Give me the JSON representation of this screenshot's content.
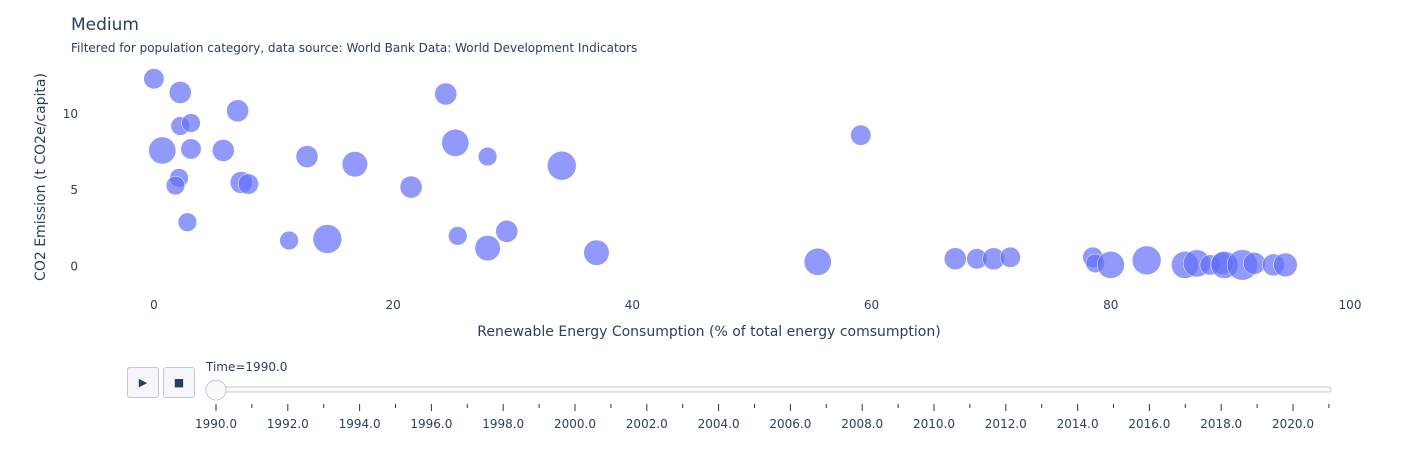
{
  "chart_data": {
    "type": "scatter",
    "title": "Medium",
    "subtitle": "Filtered for population category, data source: World Bank Data: World Development Indicators",
    "xlabel": "Renewable Energy Consumption (% of total energy comsumption)",
    "ylabel": "CO2 Emission (t CO2e/capita)",
    "xlim": [
      -2,
      100
    ],
    "ylim": [
      -2.2,
      13.2
    ],
    "xticks": [
      0,
      20,
      40,
      60,
      80,
      100
    ],
    "yticks": [
      0,
      5,
      10
    ],
    "marker_color": "#636efa",
    "points": [
      {
        "x": 0.0,
        "y": 12.3,
        "size": 1.2
      },
      {
        "x": 2.2,
        "y": 11.4,
        "size": 1.3
      },
      {
        "x": 0.7,
        "y": 7.6,
        "size": 1.6
      },
      {
        "x": 2.2,
        "y": 9.2,
        "size": 1.1
      },
      {
        "x": 3.1,
        "y": 9.4,
        "size": 1.1
      },
      {
        "x": 3.1,
        "y": 7.7,
        "size": 1.2
      },
      {
        "x": 2.1,
        "y": 5.8,
        "size": 1.1
      },
      {
        "x": 1.8,
        "y": 5.3,
        "size": 1.1
      },
      {
        "x": 2.8,
        "y": 2.9,
        "size": 1.1
      },
      {
        "x": 5.8,
        "y": 7.6,
        "size": 1.3
      },
      {
        "x": 7.0,
        "y": 10.2,
        "size": 1.3
      },
      {
        "x": 7.3,
        "y": 5.5,
        "size": 1.3
      },
      {
        "x": 7.9,
        "y": 5.4,
        "size": 1.2
      },
      {
        "x": 11.3,
        "y": 1.7,
        "size": 1.1
      },
      {
        "x": 12.8,
        "y": 7.2,
        "size": 1.3
      },
      {
        "x": 14.5,
        "y": 1.8,
        "size": 1.7
      },
      {
        "x": 16.8,
        "y": 6.7,
        "size": 1.5
      },
      {
        "x": 21.5,
        "y": 5.2,
        "size": 1.3
      },
      {
        "x": 24.4,
        "y": 11.3,
        "size": 1.3
      },
      {
        "x": 25.2,
        "y": 8.1,
        "size": 1.6
      },
      {
        "x": 25.4,
        "y": 2.0,
        "size": 1.1
      },
      {
        "x": 27.9,
        "y": 7.2,
        "size": 1.1
      },
      {
        "x": 27.9,
        "y": 1.2,
        "size": 1.5
      },
      {
        "x": 29.5,
        "y": 2.3,
        "size": 1.3
      },
      {
        "x": 34.1,
        "y": 6.6,
        "size": 1.7
      },
      {
        "x": 37.0,
        "y": 0.9,
        "size": 1.5
      },
      {
        "x": 55.5,
        "y": 0.3,
        "size": 1.6
      },
      {
        "x": 59.1,
        "y": 8.6,
        "size": 1.2
      },
      {
        "x": 67.0,
        "y": 0.5,
        "size": 1.3
      },
      {
        "x": 68.8,
        "y": 0.5,
        "size": 1.2
      },
      {
        "x": 70.2,
        "y": 0.5,
        "size": 1.3
      },
      {
        "x": 71.6,
        "y": 0.6,
        "size": 1.2
      },
      {
        "x": 78.5,
        "y": 0.6,
        "size": 1.2
      },
      {
        "x": 78.7,
        "y": 0.2,
        "size": 1.1
      },
      {
        "x": 80.0,
        "y": 0.1,
        "size": 1.6
      },
      {
        "x": 83.0,
        "y": 0.4,
        "size": 1.7
      },
      {
        "x": 86.2,
        "y": 0.1,
        "size": 1.6
      },
      {
        "x": 87.2,
        "y": 0.2,
        "size": 1.6
      },
      {
        "x": 88.3,
        "y": 0.1,
        "size": 1.2
      },
      {
        "x": 89.3,
        "y": 0.2,
        "size": 1.3
      },
      {
        "x": 89.5,
        "y": 0.1,
        "size": 1.6
      },
      {
        "x": 91.0,
        "y": 0.1,
        "size": 1.8
      },
      {
        "x": 92.0,
        "y": 0.2,
        "size": 1.3
      },
      {
        "x": 93.6,
        "y": 0.1,
        "size": 1.3
      },
      {
        "x": 94.6,
        "y": 0.1,
        "size": 1.4
      }
    ]
  },
  "slider": {
    "label": "Time=1990.0",
    "play_symbol": "▶",
    "stop_symbol": "■",
    "current": "1990.0",
    "ticks": [
      "1990.0",
      "1992.0",
      "1994.0",
      "1996.0",
      "1998.0",
      "2000.0",
      "2002.0",
      "2004.0",
      "2006.0",
      "2008.0",
      "2010.0",
      "2012.0",
      "2014.0",
      "2016.0",
      "2018.0",
      "2020.0"
    ]
  }
}
